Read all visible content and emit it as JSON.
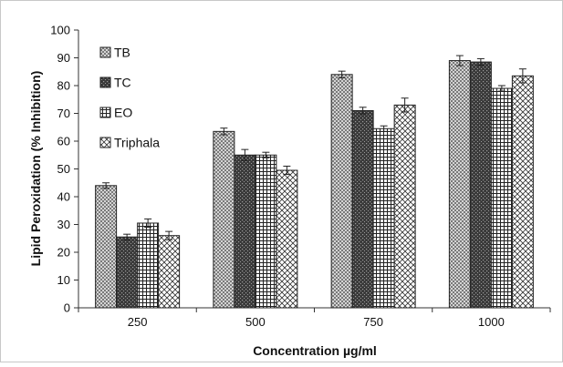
{
  "chart_data": {
    "type": "bar",
    "xlabel": "Concentration µg/ml",
    "ylabel": "Lipid Peroxidation (% Inhibition)",
    "ylim": [
      0,
      100
    ],
    "yticks": [
      0,
      10,
      20,
      30,
      40,
      50,
      60,
      70,
      80,
      90,
      100
    ],
    "categories": [
      "250",
      "500",
      "750",
      "1000"
    ],
    "grid": false,
    "legend_position": "top-left",
    "error_bars": true,
    "series": [
      {
        "name": "TB",
        "values": [
          44,
          63.5,
          84,
          89
        ],
        "errors": [
          1,
          1.2,
          1.2,
          1.8
        ],
        "pattern": "dots",
        "color": "#bdbdbd"
      },
      {
        "name": "TC",
        "values": [
          25.5,
          55,
          71,
          88.5
        ],
        "errors": [
          1,
          2,
          1.2,
          1.2
        ],
        "pattern": "dark-dots",
        "color": "#444444"
      },
      {
        "name": "EO",
        "values": [
          30.5,
          55,
          64.5,
          79
        ],
        "errors": [
          1.5,
          1,
          1,
          1
        ],
        "pattern": "grid",
        "color": "#ffffff"
      },
      {
        "name": "Triphala",
        "values": [
          26,
          49.5,
          73,
          83.5
        ],
        "errors": [
          1.5,
          1.5,
          2.5,
          2.5
        ],
        "pattern": "diamonds",
        "color": "#ffffff"
      }
    ]
  }
}
